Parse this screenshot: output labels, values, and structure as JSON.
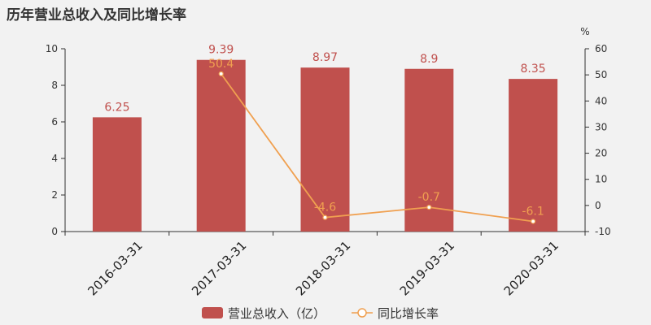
{
  "chart_data": {
    "type": "bar",
    "title": "历年营业总收入及同比增长率",
    "categories": [
      "2016-03-31",
      "2017-03-31",
      "2018-03-31",
      "2019-03-31",
      "2020-03-31"
    ],
    "series": [
      {
        "name": "营业总收入（亿）",
        "type": "bar",
        "axis": "left",
        "values": [
          6.25,
          9.39,
          8.97,
          8.9,
          8.35
        ],
        "labels": [
          "6.25",
          "9.39",
          "8.97",
          "8.9",
          "8.35"
        ],
        "color": "#c0504d"
      },
      {
        "name": "同比增长率",
        "type": "line",
        "axis": "right",
        "values": [
          null,
          50.4,
          -4.6,
          -0.7,
          -6.1
        ],
        "labels": [
          "",
          "50.4",
          "-4.6",
          "-0.7",
          "-6.1"
        ],
        "color": "#f0a050"
      }
    ],
    "y_left": {
      "ylim": [
        0,
        10
      ],
      "ticks": [
        "0",
        "2",
        "4",
        "6",
        "8",
        "10"
      ]
    },
    "y_right": {
      "ylim": [
        -10,
        60
      ],
      "ticks": [
        "-10",
        "0",
        "10",
        "20",
        "30",
        "40",
        "50",
        "60"
      ],
      "unit": "%"
    },
    "grid": false,
    "legend": "bottom-center"
  }
}
